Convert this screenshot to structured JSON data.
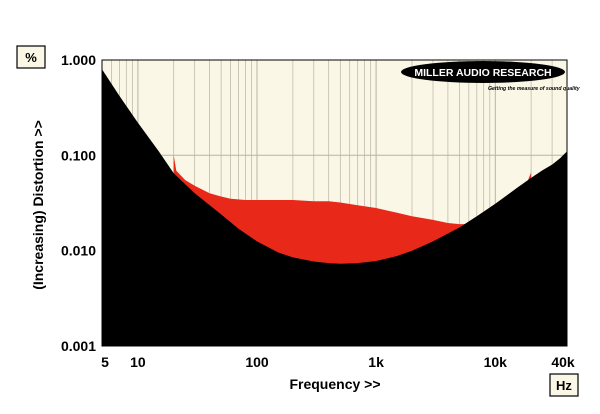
{
  "chart_data": {
    "type": "area",
    "xlabel": "Frequency >>",
    "ylabel": "(Increasing) Distortion >>",
    "y_unit": "%",
    "x_unit": "Hz",
    "x_scale": "log",
    "y_scale": "log",
    "xlim": [
      5,
      40000
    ],
    "ylim": [
      0.001,
      1.0
    ],
    "grid": true,
    "x_ticks": [
      {
        "value": 5,
        "label": "5"
      },
      {
        "value": 10,
        "label": "10"
      },
      {
        "value": 100,
        "label": "100"
      },
      {
        "value": 1000,
        "label": "1k"
      },
      {
        "value": 10000,
        "label": "10k"
      },
      {
        "value": 40000,
        "label": "40k"
      }
    ],
    "y_ticks": [
      {
        "value": 1.0,
        "label": "1.000"
      },
      {
        "value": 0.1,
        "label": "0.100"
      },
      {
        "value": 0.01,
        "label": "0.010"
      },
      {
        "value": 0.001,
        "label": "0.001"
      }
    ],
    "colors": {
      "background": "#fbf7e6",
      "threshold_fill": "#000000",
      "distortion_fill": "#e8291a",
      "grid": "#b8b3a5"
    },
    "series": [
      {
        "role": "hearing-threshold-fill",
        "color": "#000000",
        "x": [
          5,
          7,
          10,
          15,
          20,
          30,
          50,
          70,
          100,
          150,
          200,
          300,
          400,
          500,
          700,
          1000,
          1500,
          2000,
          3000,
          5000,
          7000,
          10000,
          15000,
          20000,
          25000,
          30000,
          35000,
          40000
        ],
        "y": [
          0.8,
          0.42,
          0.22,
          0.11,
          0.065,
          0.04,
          0.024,
          0.017,
          0.0125,
          0.0096,
          0.0085,
          0.0077,
          0.0074,
          0.0073,
          0.0074,
          0.0078,
          0.0088,
          0.01,
          0.0125,
          0.0175,
          0.023,
          0.031,
          0.045,
          0.058,
          0.07,
          0.08,
          0.093,
          0.11
        ]
      },
      {
        "role": "distortion-band-upper",
        "color": "#e8291a",
        "x": [
          20,
          21,
          25,
          30,
          40,
          50,
          60,
          80,
          100,
          150,
          200,
          300,
          400,
          500,
          700,
          1000,
          1500,
          2000,
          3000,
          4000,
          5000,
          6000,
          7000,
          8000,
          10000,
          12000,
          15000,
          18000,
          20000
        ],
        "y": [
          0.1,
          0.069,
          0.055,
          0.048,
          0.04,
          0.037,
          0.035,
          0.034,
          0.034,
          0.034,
          0.034,
          0.033,
          0.033,
          0.032,
          0.03,
          0.028,
          0.025,
          0.023,
          0.021,
          0.0195,
          0.019,
          0.019,
          0.0195,
          0.021,
          0.023,
          0.028,
          0.036,
          0.048,
          0.066
        ]
      },
      {
        "role": "distortion-dashed",
        "style": "dashed",
        "color": "#e8291a",
        "x": [
          7000,
          10000,
          13000,
          16000,
          19000
        ],
        "y": [
          0.0185,
          0.021,
          0.025,
          0.031,
          0.04
        ]
      }
    ]
  },
  "logo": {
    "name": "MILLER AUDIO RESEARCH",
    "tagline": "Getting the measure of sound quality"
  }
}
